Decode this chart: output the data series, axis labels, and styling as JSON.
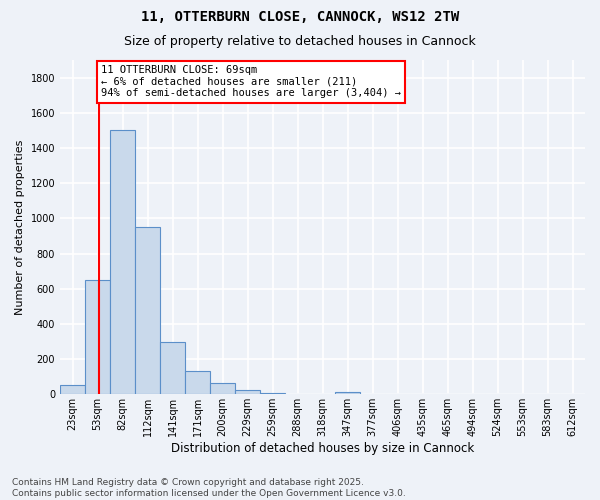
{
  "title1": "11, OTTERBURN CLOSE, CANNOCK, WS12 2TW",
  "title2": "Size of property relative to detached houses in Cannock",
  "xlabel": "Distribution of detached houses by size in Cannock",
  "ylabel": "Number of detached properties",
  "bin_labels": [
    "23sqm",
    "53sqm",
    "82sqm",
    "112sqm",
    "141sqm",
    "171sqm",
    "200sqm",
    "229sqm",
    "259sqm",
    "288sqm",
    "318sqm",
    "347sqm",
    "377sqm",
    "406sqm",
    "435sqm",
    "465sqm",
    "494sqm",
    "524sqm",
    "553sqm",
    "583sqm",
    "612sqm"
  ],
  "bar_heights": [
    50,
    650,
    1500,
    950,
    300,
    135,
    65,
    25,
    10,
    0,
    0,
    15,
    0,
    0,
    0,
    0,
    0,
    0,
    0,
    0,
    0
  ],
  "bar_color": "#c9d9eb",
  "bar_edge_color": "#5b8fc9",
  "property_line_bin_index": 1.55,
  "annotation_text": "11 OTTERBURN CLOSE: 69sqm\n← 6% of detached houses are smaller (211)\n94% of semi-detached houses are larger (3,404) →",
  "annotation_box_color": "white",
  "annotation_box_edge_color": "red",
  "vline_color": "red",
  "ylim": [
    0,
    1900
  ],
  "yticks": [
    0,
    200,
    400,
    600,
    800,
    1000,
    1200,
    1400,
    1600,
    1800
  ],
  "footer1": "Contains HM Land Registry data © Crown copyright and database right 2025.",
  "footer2": "Contains public sector information licensed under the Open Government Licence v3.0.",
  "bg_color": "#eef2f8",
  "grid_color": "white",
  "title1_fontsize": 10,
  "title2_fontsize": 9,
  "annot_fontsize": 7.5,
  "ylabel_fontsize": 8,
  "xlabel_fontsize": 8.5,
  "tick_fontsize": 7,
  "footer_fontsize": 6.5
}
